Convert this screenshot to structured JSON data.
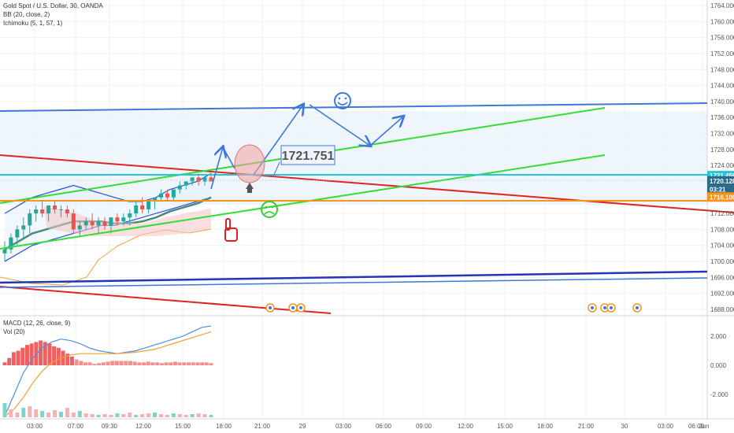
{
  "header": {
    "symbol": "Gold Spot / U.S. Dollar, 30, OANDA",
    "bb": "BB (20, close, 2)",
    "ichimoku": "Ichimoku (5, 1, 57, 1)"
  },
  "macd_panel": {
    "macd": "MACD (12, 26, close, 9)",
    "vol": "Vol (20)"
  },
  "annotation": {
    "price_box": "1721.751"
  },
  "price_axis": {
    "ticks": [
      "1764.000",
      "1760.000",
      "1756.000",
      "1752.000",
      "1748.000",
      "1744.000",
      "1740.000",
      "1736.000",
      "1732.000",
      "1728.000",
      "1724.000",
      "1716.000",
      "1712.000",
      "1708.000",
      "1704.000",
      "1700.000",
      "1696.000",
      "1692.000",
      "1688.000"
    ],
    "tick_values": [
      1764,
      1760,
      1756,
      1752,
      1748,
      1744,
      1740,
      1736,
      1732,
      1728,
      1724,
      1716,
      1712,
      1708,
      1704,
      1700,
      1696,
      1692,
      1688
    ],
    "labels": [
      {
        "text": "1721.456",
        "value": 1721.456,
        "color": "#26c6da"
      },
      {
        "text": "1720.128",
        "value": 1720.128,
        "color": "#2a6a8a"
      },
      {
        "text": "03:21",
        "value": 1718.0,
        "color": "#2a6a8a"
      },
      {
        "text": "1716.100",
        "value": 1716.1,
        "color": "#f7931a"
      }
    ]
  },
  "macd_axis": {
    "ticks": [
      "2.000",
      "0.000",
      "-2.000"
    ],
    "tick_values": [
      2,
      0,
      -2
    ]
  },
  "time_axis": {
    "labels": [
      "03:00",
      "07:00",
      "09:30",
      "12:00",
      "15:00",
      "18:00",
      "21:00",
      "29",
      "03:00",
      "06:00",
      "09:00",
      "12:00",
      "15:00",
      "18:00",
      "21:00",
      "30",
      "03:00",
      "06:00",
      "09:00",
      "Jun"
    ]
  },
  "colors": {
    "up": "#26a69a",
    "down": "#ef5350",
    "blue_channel": "#3c78d8",
    "green_channel": "#33dd33",
    "red_line": "#e02424",
    "navy_line": "#2436b4",
    "cyan_line": "#26c6da",
    "orange_line": "#f7931a"
  },
  "chart_data": [
    {
      "type": "candlestick",
      "title": "Gold Spot / U.S. Dollar, 30, OANDA",
      "ylim": [
        1686,
        1766
      ],
      "series": [
        {
          "name": "price",
          "ohlc": [
            [
              1702,
              1705,
              1700,
              1703
            ],
            [
              1703,
              1707,
              1702,
              1706
            ],
            [
              1706,
              1709,
              1704,
              1708
            ],
            [
              1708,
              1711,
              1706,
              1709
            ],
            [
              1709,
              1713,
              1707,
              1712
            ],
            [
              1712,
              1714,
              1710,
              1713
            ],
            [
              1713,
              1715,
              1711,
              1712
            ],
            [
              1712,
              1714,
              1710,
              1714
            ],
            [
              1714,
              1715,
              1712,
              1713
            ],
            [
              1713,
              1714,
              1711,
              1713
            ],
            [
              1713,
              1714,
              1711,
              1712
            ],
            [
              1712,
              1713,
              1707,
              1708
            ],
            [
              1708,
              1710,
              1706,
              1709
            ],
            [
              1709,
              1711,
              1708,
              1710
            ],
            [
              1710,
              1712,
              1708,
              1709
            ],
            [
              1709,
              1711,
              1707,
              1710
            ],
            [
              1710,
              1711,
              1708,
              1709
            ],
            [
              1709,
              1711,
              1707,
              1711
            ],
            [
              1711,
              1712,
              1709,
              1710
            ],
            [
              1710,
              1712,
              1709,
              1711
            ],
            [
              1711,
              1713,
              1709,
              1712
            ],
            [
              1712,
              1715,
              1711,
              1714
            ],
            [
              1714,
              1716,
              1712,
              1713
            ],
            [
              1713,
              1715,
              1712,
              1715
            ],
            [
              1715,
              1716,
              1713,
              1716
            ],
            [
              1716,
              1718,
              1715,
              1717
            ],
            [
              1717,
              1718,
              1715,
              1716
            ],
            [
              1716,
              1718,
              1715,
              1718
            ],
            [
              1718,
              1720,
              1717,
              1719
            ],
            [
              1719,
              1720,
              1718,
              1720
            ],
            [
              1720,
              1721,
              1719,
              1721
            ],
            [
              1721,
              1722,
              1719,
              1720
            ],
            [
              1720,
              1721,
              1719,
              1721
            ],
            [
              1721,
              1722,
              1720,
              1720
            ]
          ]
        },
        {
          "name": "BB upper",
          "values": [
            1712,
            1714,
            1716,
            1717,
            1718,
            1719,
            1718,
            1717,
            1716,
            1715,
            1715,
            1716,
            1718,
            1719,
            1720,
            1722
          ]
        },
        {
          "name": "BB lower",
          "values": [
            1700,
            1702,
            1704,
            1705,
            1706,
            1707,
            1708,
            1709,
            1709,
            1710,
            1711,
            1712,
            1713,
            1714,
            1715,
            1716
          ]
        }
      ]
    },
    {
      "type": "bar",
      "title": "MACD (12, 26, close, 9)",
      "ylim": [
        -3.5,
        3.5
      ],
      "series": [
        {
          "name": "histogram",
          "values": [
            0.2,
            0.5,
            0.9,
            1.0,
            1.2,
            1.4,
            1.5,
            1.6,
            1.7,
            1.6,
            1.5,
            1.3,
            1.2,
            1.0,
            0.8,
            0.6,
            0.4,
            0.3,
            0.2,
            0.2,
            0.1,
            0.15,
            0.2,
            0.25,
            0.3,
            0.3,
            0.3,
            0.3,
            0.3,
            0.25,
            0.2,
            0.2,
            0.25,
            0.2,
            0.2,
            0.15,
            0.2,
            0.2,
            0.25,
            0.2,
            0.2,
            0.2,
            0.2,
            0.2,
            0.2,
            0.2,
            0.15
          ]
        },
        {
          "name": "MACD",
          "values": [
            -3.5,
            -2.0,
            -0.5,
            0.5,
            1.2,
            1.6,
            1.8,
            1.7,
            1.5,
            1.2,
            1.0,
            0.9,
            0.8,
            0.9,
            1.0,
            1.2,
            1.4,
            1.6,
            1.8,
            2.0,
            2.3,
            2.6,
            2.7
          ]
        },
        {
          "name": "signal",
          "values": [
            -3.5,
            -3.0,
            -2.2,
            -1.2,
            -0.4,
            0.2,
            0.5,
            0.7,
            0.8,
            0.8,
            0.8,
            0.8,
            0.8,
            0.85,
            0.9,
            1.0,
            1.1,
            1.3,
            1.5,
            1.7,
            1.9,
            2.1,
            2.3
          ]
        }
      ]
    }
  ]
}
